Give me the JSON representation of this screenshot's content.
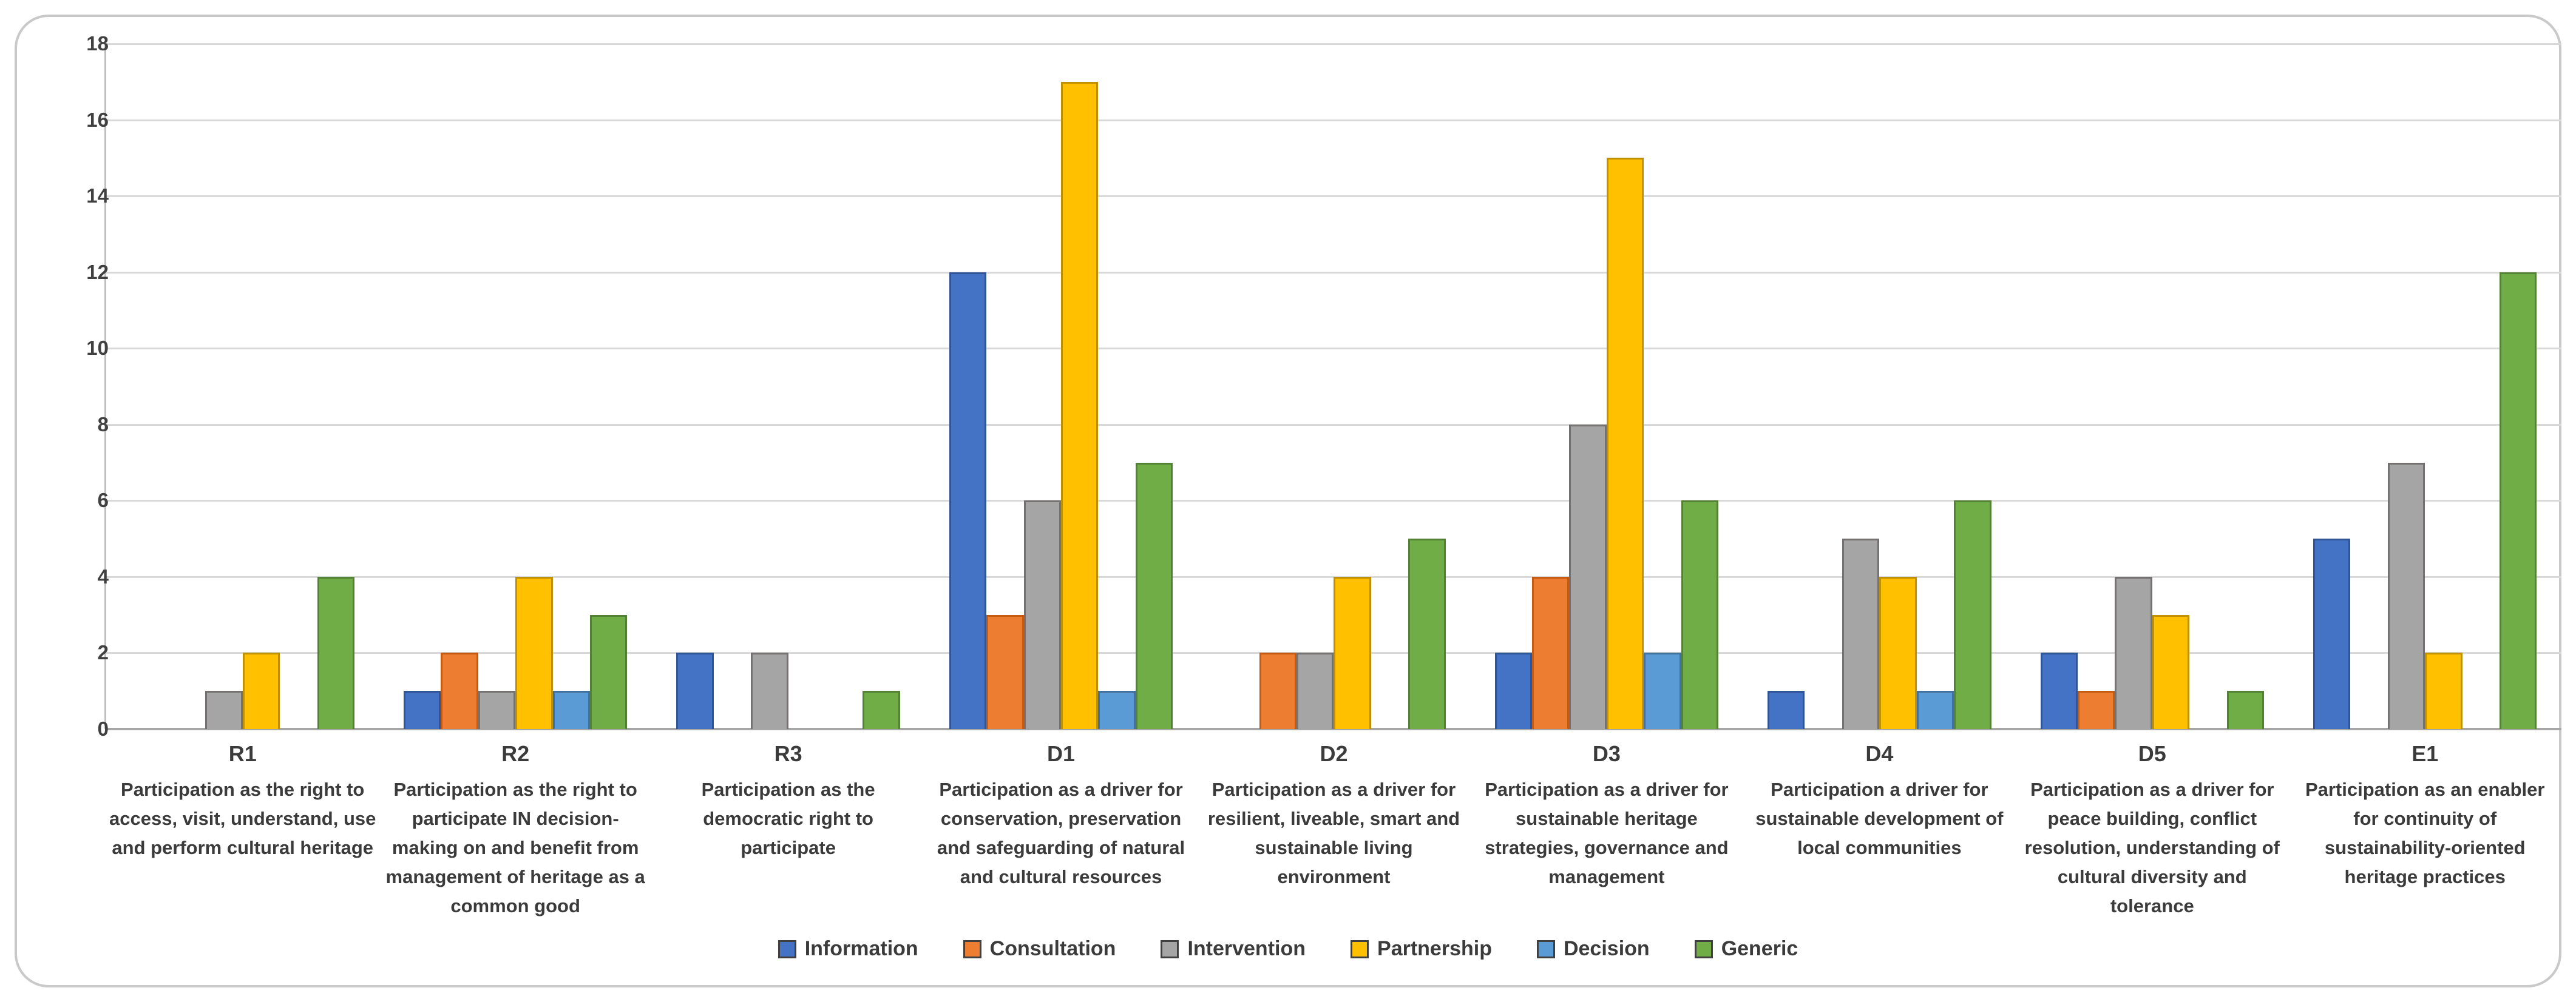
{
  "chart_data": {
    "type": "bar",
    "title": "",
    "xlabel": "",
    "ylabel": "",
    "ylim": [
      0,
      18
    ],
    "ytick_step": 2,
    "grid": true,
    "legend_position": "bottom",
    "categories": [
      {
        "code": "R1",
        "label": "Participation as the right to access, visit, understand, use and perform cultural heritage"
      },
      {
        "code": "R2",
        "label": "Participation as the right to participate IN decision-making on and benefit from management of heritage as a common good"
      },
      {
        "code": "R3",
        "label": "Participation as the democratic right to participate"
      },
      {
        "code": "D1",
        "label": "Participation as a driver for conservation, preservation and safeguarding of natural and cultural resources"
      },
      {
        "code": "D2",
        "label": "Participation as a driver for resilient, liveable, smart and sustainable living environment"
      },
      {
        "code": "D3",
        "label": "Participation as a driver for sustainable heritage strategies, governance and management"
      },
      {
        "code": "D4",
        "label": "Participation a driver for sustainable development of local communities"
      },
      {
        "code": "D5",
        "label": "Participation as a driver for peace building, conflict resolution, understanding of cultural diversity and tolerance"
      },
      {
        "code": "E1",
        "label": "Participation as an enabler for continuity of sustainability-oriented heritage practices"
      }
    ],
    "series": [
      {
        "name": "Information",
        "color": "#4472C4",
        "border": "#2F5597",
        "values": [
          0,
          1,
          2,
          12,
          0,
          2,
          1,
          2,
          5
        ]
      },
      {
        "name": "Consultation",
        "color": "#ED7D31",
        "border": "#C55A11",
        "values": [
          0,
          2,
          0,
          3,
          2,
          4,
          0,
          1,
          0
        ]
      },
      {
        "name": "Intervention",
        "color": "#A5A5A5",
        "border": "#767171",
        "values": [
          1,
          1,
          2,
          6,
          2,
          8,
          5,
          4,
          7
        ]
      },
      {
        "name": "Partnership",
        "color": "#FFC000",
        "border": "#BF9000",
        "values": [
          2,
          4,
          0,
          17,
          4,
          15,
          4,
          3,
          2
        ]
      },
      {
        "name": "Decision",
        "color": "#5B9BD5",
        "border": "#41719C",
        "values": [
          0,
          1,
          0,
          1,
          0,
          2,
          1,
          0,
          0
        ]
      },
      {
        "name": "Generic",
        "color": "#70AD47",
        "border": "#548235",
        "values": [
          4,
          3,
          1,
          7,
          5,
          6,
          6,
          1,
          12
        ]
      }
    ]
  }
}
